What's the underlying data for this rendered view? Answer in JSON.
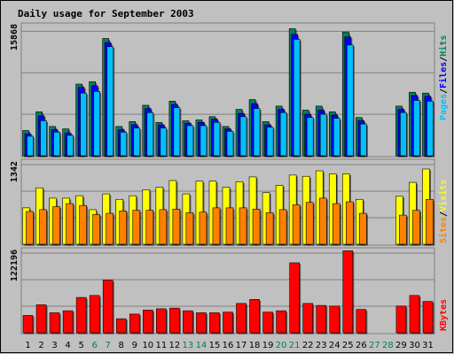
{
  "title": "Daily usage for September 2003",
  "colors": {
    "background": "#c0c0c0",
    "plot_background": "#c0c0c0",
    "title": "#0000cc",
    "hits": "#00805c",
    "files": "#0000ff",
    "pages": "#00c0ff",
    "visits": "#ffff00",
    "sites": "#ff8000",
    "kbytes": "#ff0000",
    "weekend_label": "#00805c",
    "weekday_label": "#000000"
  },
  "chart_data": [
    {
      "type": "bar",
      "panel": "top",
      "ylabel_max": "15868",
      "ymax": 15868,
      "right_label_parts": [
        "Pages",
        "Files",
        "Hits"
      ],
      "categories": [
        "1",
        "2",
        "3",
        "4",
        "5",
        "6",
        "7",
        "8",
        "9",
        "10",
        "11",
        "12",
        "13",
        "14",
        "15",
        "16",
        "17",
        "18",
        "19",
        "20",
        "21",
        "22",
        "23",
        "24",
        "25",
        "26",
        "27",
        "28",
        "29",
        "30",
        "31"
      ],
      "series": [
        {
          "name": "Hits",
          "values": [
            3100,
            5400,
            3600,
            3300,
            8800,
            9100,
            14400,
            3600,
            4200,
            6200,
            4100,
            6700,
            4300,
            4400,
            4800,
            3600,
            5700,
            6900,
            4200,
            6100,
            15600,
            5600,
            6100,
            5400,
            15200,
            4700,
            null,
            null,
            6100,
            7800,
            7700
          ]
        },
        {
          "name": "Files",
          "values": [
            2700,
            4900,
            3200,
            2800,
            8400,
            8600,
            13900,
            3200,
            3800,
            5800,
            3800,
            6300,
            4000,
            4100,
            4500,
            3300,
            5200,
            6400,
            3800,
            5700,
            14900,
            5100,
            5600,
            5000,
            14600,
            4300,
            null,
            null,
            5700,
            7400,
            7300
          ]
        },
        {
          "name": "Pages",
          "values": [
            2400,
            4300,
            2900,
            2500,
            7700,
            7900,
            13400,
            2900,
            3400,
            5300,
            3400,
            5900,
            3700,
            3700,
            4100,
            3000,
            4800,
            5800,
            3500,
            5300,
            14300,
            4700,
            5100,
            4600,
            13600,
            3900,
            null,
            null,
            5300,
            6800,
            6700
          ]
        }
      ]
    },
    {
      "type": "bar",
      "panel": "middle",
      "ylabel_max": "1342",
      "ymax": 1342,
      "right_label_parts": [
        "Sites",
        "Visits"
      ],
      "categories": [
        "1",
        "2",
        "3",
        "4",
        "5",
        "6",
        "7",
        "8",
        "9",
        "10",
        "11",
        "12",
        "13",
        "14",
        "15",
        "16",
        "17",
        "18",
        "19",
        "20",
        "21",
        "22",
        "23",
        "24",
        "25",
        "26",
        "27",
        "28",
        "29",
        "30",
        "31"
      ],
      "series": [
        {
          "name": "Visits",
          "values": [
            600,
            930,
            760,
            760,
            800,
            570,
            830,
            740,
            800,
            900,
            940,
            1050,
            830,
            1040,
            1040,
            940,
            1030,
            1110,
            850,
            970,
            1140,
            1120,
            1210,
            1160,
            1160,
            740,
            null,
            null,
            790,
            1020,
            1240
          ]
        },
        {
          "name": "Sites",
          "values": [
            540,
            570,
            620,
            670,
            640,
            490,
            510,
            550,
            560,
            560,
            570,
            580,
            520,
            530,
            600,
            600,
            600,
            580,
            520,
            570,
            650,
            690,
            760,
            670,
            700,
            510,
            null,
            null,
            480,
            560,
            740
          ]
        }
      ]
    },
    {
      "type": "bar",
      "panel": "bottom",
      "ylabel_max": "122196",
      "ymax": 122196,
      "right_label_parts": [
        "KBytes"
      ],
      "categories": [
        "1",
        "2",
        "3",
        "4",
        "5",
        "6",
        "7",
        "8",
        "9",
        "10",
        "11",
        "12",
        "13",
        "14",
        "15",
        "16",
        "17",
        "18",
        "19",
        "20",
        "21",
        "22",
        "23",
        "24",
        "25",
        "26",
        "27",
        "28",
        "29",
        "30",
        "31"
      ],
      "series": [
        {
          "name": "KBytes",
          "values": [
            26000,
            42000,
            30000,
            33000,
            53000,
            56000,
            79000,
            21000,
            28000,
            34000,
            36000,
            37000,
            33000,
            30000,
            30000,
            31000,
            44000,
            50000,
            31000,
            33000,
            105000,
            44000,
            41000,
            40000,
            123000,
            35000,
            null,
            null,
            40000,
            56000,
            47000
          ]
        }
      ],
      "x_labels": [
        "1",
        "2",
        "3",
        "4",
        "5",
        "6",
        "7",
        "8",
        "9",
        "10",
        "11",
        "12",
        "13",
        "14",
        "15",
        "16",
        "17",
        "18",
        "19",
        "20",
        "21",
        "22",
        "23",
        "24",
        "25",
        "26",
        "27",
        "28",
        "29",
        "30",
        "31"
      ],
      "weekend_days": [
        "6",
        "7",
        "13",
        "14",
        "20",
        "21",
        "27",
        "28"
      ]
    }
  ]
}
